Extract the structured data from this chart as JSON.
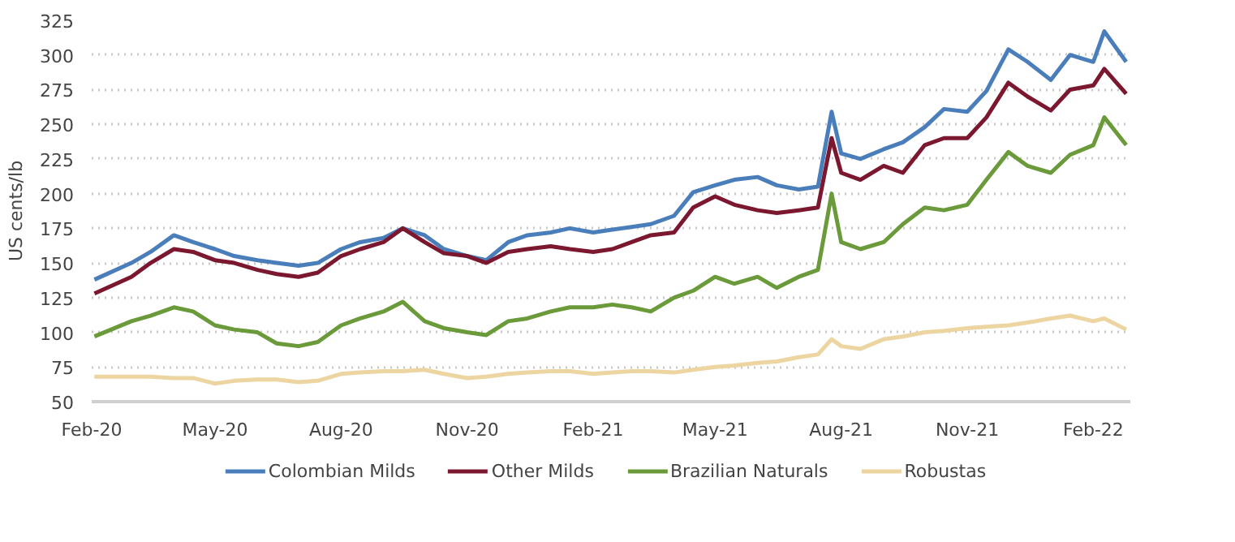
{
  "chart_data": {
    "type": "line",
    "ylabel": "US cents/lb",
    "x": [
      "2020-02-03",
      "2020-03-01",
      "2020-03-15",
      "2020-04-01",
      "2020-04-15",
      "2020-05-01",
      "2020-05-15",
      "2020-06-01",
      "2020-06-15",
      "2020-07-01",
      "2020-07-15",
      "2020-08-01",
      "2020-08-15",
      "2020-09-01",
      "2020-09-15",
      "2020-10-01",
      "2020-10-15",
      "2020-11-01",
      "2020-11-15",
      "2020-12-01",
      "2020-12-15",
      "2021-01-01",
      "2021-01-15",
      "2021-02-01",
      "2021-02-15",
      "2021-03-01",
      "2021-03-15",
      "2021-04-01",
      "2021-04-15",
      "2021-05-01",
      "2021-05-15",
      "2021-06-01",
      "2021-06-15",
      "2021-07-01",
      "2021-07-15",
      "2021-07-25",
      "2021-08-01",
      "2021-08-15",
      "2021-09-01",
      "2021-09-15",
      "2021-10-01",
      "2021-10-15",
      "2021-11-01",
      "2021-11-15",
      "2021-12-01",
      "2021-12-15",
      "2022-01-01",
      "2022-01-15",
      "2022-02-01",
      "2022-02-09",
      "2022-02-25"
    ],
    "series": [
      {
        "name": "Colombian Milds",
        "color": "#4a7ebb",
        "values": [
          138,
          150,
          158,
          170,
          165,
          160,
          155,
          152,
          150,
          148,
          150,
          160,
          165,
          168,
          175,
          170,
          160,
          155,
          152,
          165,
          170,
          172,
          175,
          172,
          174,
          176,
          178,
          184,
          201,
          206,
          210,
          212,
          206,
          203,
          205,
          259,
          229,
          225,
          232,
          237,
          248,
          261,
          259,
          274,
          304,
          295,
          282,
          300,
          295,
          317,
          295
        ]
      },
      {
        "name": "Other Milds",
        "color": "#7b1830",
        "values": [
          128,
          140,
          150,
          160,
          158,
          152,
          150,
          145,
          142,
          140,
          143,
          155,
          160,
          165,
          175,
          165,
          157,
          155,
          150,
          158,
          160,
          162,
          160,
          158,
          160,
          165,
          170,
          172,
          190,
          198,
          192,
          188,
          186,
          188,
          190,
          240,
          215,
          210,
          220,
          215,
          235,
          240,
          240,
          255,
          280,
          270,
          260,
          275,
          278,
          290,
          272
        ]
      },
      {
        "name": "Brazilian Naturals",
        "color": "#6a9a3a",
        "values": [
          97,
          108,
          112,
          118,
          115,
          105,
          102,
          100,
          92,
          90,
          93,
          105,
          110,
          115,
          122,
          108,
          103,
          100,
          98,
          108,
          110,
          115,
          118,
          118,
          120,
          118,
          115,
          125,
          130,
          140,
          135,
          140,
          132,
          140,
          145,
          200,
          165,
          160,
          165,
          178,
          190,
          188,
          192,
          210,
          230,
          220,
          215,
          228,
          235,
          255,
          235
        ]
      },
      {
        "name": "Robustas",
        "color": "#ecd5a0",
        "values": [
          68,
          68,
          68,
          67,
          67,
          63,
          65,
          66,
          66,
          64,
          65,
          70,
          71,
          72,
          72,
          73,
          70,
          67,
          68,
          70,
          71,
          72,
          72,
          70,
          71,
          72,
          72,
          71,
          73,
          75,
          76,
          78,
          79,
          82,
          84,
          95,
          90,
          88,
          95,
          97,
          100,
          101,
          103,
          104,
          105,
          107,
          110,
          112,
          108,
          110,
          102
        ]
      }
    ],
    "xlim": [
      "2020-02-01",
      "2022-02-28"
    ],
    "xticks": [
      {
        "value": "2020-02-01",
        "label": "Feb-20"
      },
      {
        "value": "2020-05-01",
        "label": "May-20"
      },
      {
        "value": "2020-08-01",
        "label": "Aug-20"
      },
      {
        "value": "2020-11-01",
        "label": "Nov-20"
      },
      {
        "value": "2021-02-01",
        "label": "Feb-21"
      },
      {
        "value": "2021-05-01",
        "label": "May-21"
      },
      {
        "value": "2021-08-01",
        "label": "Aug-21"
      },
      {
        "value": "2021-11-01",
        "label": "Nov-21"
      },
      {
        "value": "2022-02-01",
        "label": "Feb-22"
      }
    ],
    "ylim": [
      50,
      325
    ],
    "yticks": [
      50,
      75,
      100,
      125,
      150,
      175,
      200,
      225,
      250,
      275,
      300,
      325
    ],
    "grid": "y",
    "legend": "bottom",
    "line_style": "solid"
  }
}
